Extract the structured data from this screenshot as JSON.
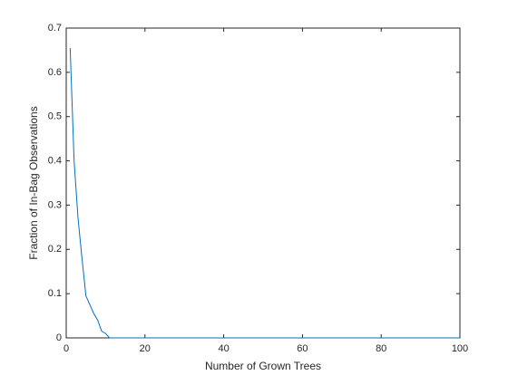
{
  "chart_data": {
    "type": "line",
    "xlabel": "Number of Grown Trees",
    "ylabel": "Fraction of In-Bag Observations",
    "x": [
      1,
      2,
      3,
      4,
      5,
      6,
      7,
      8,
      9,
      10,
      11,
      12,
      100
    ],
    "series": [
      {
        "color": "#0072bd",
        "values": [
          0.655,
          0.4,
          0.27,
          0.18,
          0.095,
          0.075,
          0.055,
          0.04,
          0.015,
          0.01,
          0,
          0,
          0
        ]
      }
    ],
    "xlim": [
      0,
      100
    ],
    "xticks": [
      0,
      20,
      40,
      60,
      80,
      100
    ],
    "ylim": [
      0,
      0.7
    ],
    "yticks": [
      0,
      0.1,
      0.2,
      0.3,
      0.4,
      0.5,
      0.6,
      0.7
    ]
  }
}
